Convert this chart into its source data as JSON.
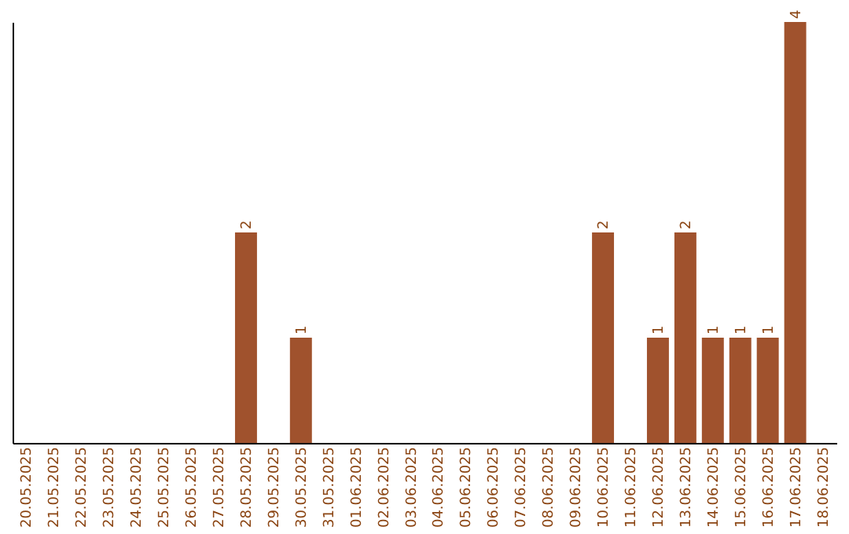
{
  "chart_data": {
    "type": "bar",
    "categories": [
      "20.05.2025",
      "21.05.2025",
      "22.05.2025",
      "23.05.2025",
      "24.05.2025",
      "25.05.2025",
      "26.05.2025",
      "27.05.2025",
      "28.05.2025",
      "29.05.2025",
      "30.05.2025",
      "31.05.2025",
      "01.06.2025",
      "02.06.2025",
      "03.06.2025",
      "04.06.2025",
      "05.06.2025",
      "06.06.2025",
      "07.06.2025",
      "08.06.2025",
      "09.06.2025",
      "10.06.2025",
      "11.06.2025",
      "12.06.2025",
      "13.06.2025",
      "14.06.2025",
      "15.06.2025",
      "16.06.2025",
      "17.06.2025",
      "18.06.2025"
    ],
    "values": [
      0,
      0,
      0,
      0,
      0,
      0,
      0,
      0,
      2,
      0,
      1,
      0,
      0,
      0,
      0,
      0,
      0,
      0,
      0,
      0,
      0,
      2,
      0,
      1,
      2,
      1,
      1,
      1,
      4,
      0
    ],
    "value_labels": [
      null,
      null,
      null,
      null,
      null,
      null,
      null,
      null,
      "2",
      null,
      "1",
      null,
      null,
      null,
      null,
      null,
      null,
      null,
      null,
      null,
      null,
      "2",
      null,
      "1",
      "2",
      "1",
      "1",
      "1",
      "4",
      null
    ],
    "color": "#a0522d",
    "tick_labels": "x",
    "grid": false
  }
}
